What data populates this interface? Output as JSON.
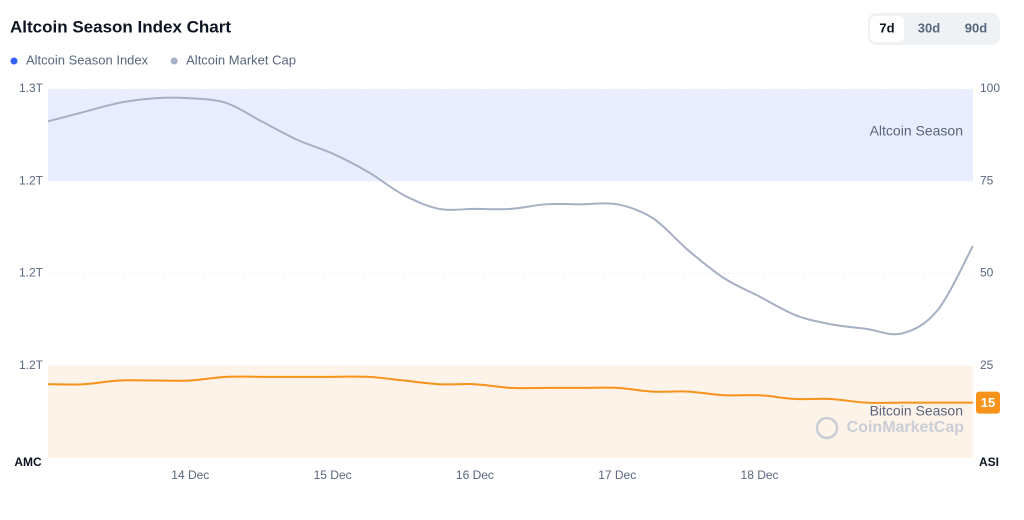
{
  "chart_data": {
    "type": "line",
    "title": "Altcoin Season Index Chart",
    "range_buttons": [
      "7d",
      "30d",
      "90d"
    ],
    "selected_range": 0,
    "categories": [
      null,
      null,
      null,
      null,
      "14 Dec",
      null,
      null,
      null,
      "15 Dec",
      null,
      null,
      null,
      "16 Dec",
      null,
      null,
      null,
      "17 Dec",
      null,
      null,
      null,
      "18 Dec",
      null,
      null,
      null,
      null,
      null,
      null
    ],
    "series": [
      {
        "name": "Altcoin Season Index",
        "axis": "y2",
        "color": "#f7931a",
        "legend_color": "#3861fb",
        "values": [
          20,
          20,
          21,
          21,
          21,
          22,
          22,
          22,
          22,
          22,
          21,
          20,
          20,
          19,
          19,
          19,
          19,
          18,
          18,
          17,
          17,
          16,
          16,
          15,
          15,
          15,
          15
        ]
      },
      {
        "name": "Altcoin Market Cap",
        "axis": "y",
        "color": "#a6b0c3",
        "legend_color": "#a6b0c3",
        "values": [
          1.253,
          1.255,
          1.257,
          1.258,
          1.258,
          1.257,
          1.253,
          1.249,
          1.246,
          1.242,
          1.237,
          1.234,
          1.234,
          1.234,
          1.235,
          1.235,
          1.235,
          1.232,
          1.225,
          1.219,
          1.215,
          1.211,
          1.209,
          1.208,
          1.207,
          1.212,
          1.226
        ]
      }
    ],
    "y_label": "AMC",
    "y2_label": "ASI",
    "ylim": [
      1.18,
      1.26
    ],
    "yticks": [
      {
        "value": 1.26,
        "label": "1.3T"
      },
      {
        "value": 1.24,
        "label": "1.2T"
      },
      {
        "value": 1.22,
        "label": "1.2T"
      },
      {
        "value": 1.2,
        "label": "1.2T"
      }
    ],
    "y2lim": [
      0,
      100
    ],
    "y2ticks": [
      100,
      75,
      50,
      25
    ],
    "bands": [
      {
        "label": "Altcoin Season",
        "from": 75,
        "to": 100,
        "color": "#eaedfd"
      },
      {
        "label": "Bitcoin Season",
        "from": 0,
        "to": 25,
        "color": "#fef3e8"
      }
    ],
    "watermark": "CoinMarketCap"
  }
}
